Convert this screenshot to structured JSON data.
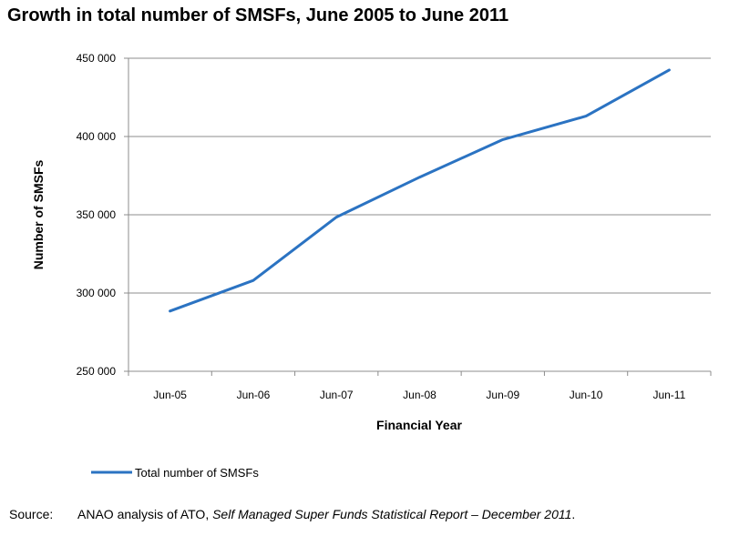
{
  "chart_data": {
    "type": "line",
    "title": "Growth in total number of SMSFs, June 2005 to June 2011",
    "xlabel": "Financial Year",
    "ylabel": "Number of SMSFs",
    "categories": [
      "Jun-05",
      "Jun-06",
      "Jun-07",
      "Jun-08",
      "Jun-09",
      "Jun-10",
      "Jun-11"
    ],
    "series": [
      {
        "name": "Total number of SMSFs",
        "values": [
          288500,
          308000,
          348500,
          374000,
          398000,
          413000,
          442500
        ],
        "color": "#2b73c2"
      }
    ],
    "ylim": [
      250000,
      450000
    ],
    "yticks": [
      250000,
      300000,
      350000,
      400000,
      450000
    ],
    "ytick_labels": [
      "250 000",
      "300 000",
      "350 000",
      "400 000",
      "450 000"
    ],
    "grid": true,
    "legend_position": "bottom-left"
  },
  "source": {
    "label": "Source:",
    "prefix": "ANAO analysis of ATO, ",
    "report": "Self Managed Super Funds Statistical Report – December 2011",
    "suffix": "."
  }
}
